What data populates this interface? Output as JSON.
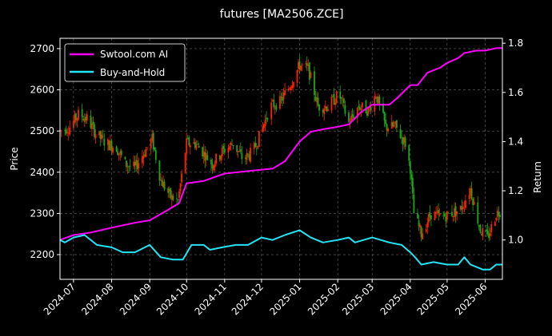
{
  "chart_data": {
    "type": "line",
    "title": "futures [MA2506.ZCE]",
    "xlabel": "",
    "ylabel": "Price",
    "y2label": "Return",
    "x_range": [
      "2024-06-20",
      "2025-06-15"
    ],
    "ylim": [
      2140,
      2725
    ],
    "y2lim": [
      0.84,
      1.82
    ],
    "yticks": [
      2200,
      2300,
      2400,
      2500,
      2600,
      2700
    ],
    "y2ticks": [
      1.0,
      1.2,
      1.4,
      1.6,
      1.8
    ],
    "y2tick_labels": [
      "1.0",
      "1.2",
      "1.4",
      "1.6",
      "1.8"
    ],
    "xticks": [
      "2024-07-01",
      "2024-08-01",
      "2024-09-01",
      "2024-10-01",
      "2024-11-01",
      "2024-12-01",
      "2025-01-01",
      "2025-02-01",
      "2025-03-01",
      "2025-04-01",
      "2025-05-01",
      "2025-06-01"
    ],
    "xtick_labels": [
      "2024-07",
      "2024-08",
      "2024-09",
      "2024-10",
      "2024-11",
      "2024-12",
      "2025-01",
      "2025-02",
      "2025-03",
      "2025-04",
      "2025-05",
      "2025-06"
    ],
    "grid": true,
    "legend_position": "top-left",
    "colors": {
      "background": "#000000",
      "up": "#ff2200",
      "down": "#1aa81a",
      "ai": "#ff00ff",
      "bh": "#22e5f5",
      "grid": "#6a6a6a",
      "axis": "#ffffff"
    },
    "price_anchors": [
      [
        "2024-06-20",
        2500
      ],
      [
        "2024-06-28",
        2510
      ],
      [
        "2024-07-05",
        2540
      ],
      [
        "2024-07-12",
        2530
      ],
      [
        "2024-07-20",
        2490
      ],
      [
        "2024-07-28",
        2470
      ],
      [
        "2024-08-05",
        2460
      ],
      [
        "2024-08-12",
        2420
      ],
      [
        "2024-08-20",
        2410
      ],
      [
        "2024-08-28",
        2450
      ],
      [
        "2024-09-03",
        2480
      ],
      [
        "2024-09-10",
        2380
      ],
      [
        "2024-09-18",
        2340
      ],
      [
        "2024-09-24",
        2330
      ],
      [
        "2024-10-01",
        2470
      ],
      [
        "2024-10-08",
        2470
      ],
      [
        "2024-10-14",
        2450
      ],
      [
        "2024-10-22",
        2420
      ],
      [
        "2024-10-30",
        2450
      ],
      [
        "2024-11-08",
        2470
      ],
      [
        "2024-11-16",
        2430
      ],
      [
        "2024-11-24",
        2450
      ],
      [
        "2024-12-01",
        2500
      ],
      [
        "2024-12-08",
        2560
      ],
      [
        "2024-12-16",
        2570
      ],
      [
        "2024-12-24",
        2610
      ],
      [
        "2025-01-01",
        2660
      ],
      [
        "2025-01-08",
        2650
      ],
      [
        "2025-01-16",
        2560
      ],
      [
        "2025-01-24",
        2560
      ],
      [
        "2025-02-02",
        2590
      ],
      [
        "2025-02-10",
        2520
      ],
      [
        "2025-02-18",
        2560
      ],
      [
        "2025-02-26",
        2550
      ],
      [
        "2025-03-04",
        2590
      ],
      [
        "2025-03-12",
        2510
      ],
      [
        "2025-03-20",
        2510
      ],
      [
        "2025-03-28",
        2470
      ],
      [
        "2025-04-01",
        2410
      ],
      [
        "2025-04-04",
        2300
      ],
      [
        "2025-04-10",
        2250
      ],
      [
        "2025-04-18",
        2300
      ],
      [
        "2025-04-26",
        2290
      ],
      [
        "2025-05-04",
        2300
      ],
      [
        "2025-05-12",
        2310
      ],
      [
        "2025-05-20",
        2360
      ],
      [
        "2025-05-28",
        2260
      ],
      [
        "2025-06-03",
        2240
      ],
      [
        "2025-06-10",
        2300
      ],
      [
        "2025-06-15",
        2310
      ]
    ],
    "series": [
      {
        "name": "Swtool.com AI",
        "axis": "right",
        "points": [
          [
            "2024-06-20",
            1.0
          ],
          [
            "2024-07-01",
            1.02
          ],
          [
            "2024-07-15",
            1.03
          ],
          [
            "2024-08-01",
            1.05
          ],
          [
            "2024-08-20",
            1.07
          ],
          [
            "2024-09-01",
            1.08
          ],
          [
            "2024-09-15",
            1.12
          ],
          [
            "2024-09-25",
            1.15
          ],
          [
            "2024-10-01",
            1.23
          ],
          [
            "2024-10-15",
            1.24
          ],
          [
            "2024-11-01",
            1.27
          ],
          [
            "2024-11-20",
            1.28
          ],
          [
            "2024-12-10",
            1.29
          ],
          [
            "2024-12-20",
            1.32
          ],
          [
            "2025-01-01",
            1.4
          ],
          [
            "2025-01-10",
            1.44
          ],
          [
            "2025-01-20",
            1.45
          ],
          [
            "2025-02-01",
            1.46
          ],
          [
            "2025-02-10",
            1.47
          ],
          [
            "2025-02-20",
            1.52
          ],
          [
            "2025-03-01",
            1.55
          ],
          [
            "2025-03-15",
            1.55
          ],
          [
            "2025-03-22",
            1.58
          ],
          [
            "2025-04-01",
            1.63
          ],
          [
            "2025-04-07",
            1.63
          ],
          [
            "2025-04-15",
            1.68
          ],
          [
            "2025-04-25",
            1.7
          ],
          [
            "2025-05-01",
            1.72
          ],
          [
            "2025-05-10",
            1.74
          ],
          [
            "2025-05-15",
            1.76
          ],
          [
            "2025-05-25",
            1.77
          ],
          [
            "2025-06-01",
            1.77
          ],
          [
            "2025-06-10",
            1.78
          ],
          [
            "2025-06-15",
            1.78
          ]
        ]
      },
      {
        "name": "Buy-and-Hold",
        "axis": "right",
        "points": [
          [
            "2024-06-20",
            1.0
          ],
          [
            "2024-06-24",
            0.99
          ],
          [
            "2024-07-01",
            1.01
          ],
          [
            "2024-07-10",
            1.02
          ],
          [
            "2024-07-20",
            0.98
          ],
          [
            "2024-08-01",
            0.97
          ],
          [
            "2024-08-10",
            0.95
          ],
          [
            "2024-08-20",
            0.95
          ],
          [
            "2024-09-01",
            0.98
          ],
          [
            "2024-09-10",
            0.93
          ],
          [
            "2024-09-20",
            0.92
          ],
          [
            "2024-09-28",
            0.92
          ],
          [
            "2024-10-05",
            0.98
          ],
          [
            "2024-10-15",
            0.98
          ],
          [
            "2024-10-20",
            0.96
          ],
          [
            "2024-10-30",
            0.97
          ],
          [
            "2024-11-10",
            0.98
          ],
          [
            "2024-11-20",
            0.98
          ],
          [
            "2024-12-01",
            1.01
          ],
          [
            "2024-12-10",
            1.0
          ],
          [
            "2024-12-20",
            1.02
          ],
          [
            "2025-01-01",
            1.04
          ],
          [
            "2025-01-10",
            1.01
          ],
          [
            "2025-01-20",
            0.99
          ],
          [
            "2025-02-01",
            1.0
          ],
          [
            "2025-02-10",
            1.01
          ],
          [
            "2025-02-15",
            0.99
          ],
          [
            "2025-03-01",
            1.01
          ],
          [
            "2025-03-15",
            0.99
          ],
          [
            "2025-03-25",
            0.98
          ],
          [
            "2025-04-01",
            0.95
          ],
          [
            "2025-04-05",
            0.93
          ],
          [
            "2025-04-10",
            0.9
          ],
          [
            "2025-04-20",
            0.91
          ],
          [
            "2025-05-01",
            0.9
          ],
          [
            "2025-05-10",
            0.9
          ],
          [
            "2025-05-15",
            0.93
          ],
          [
            "2025-05-20",
            0.9
          ],
          [
            "2025-05-30",
            0.88
          ],
          [
            "2025-06-05",
            0.88
          ],
          [
            "2025-06-10",
            0.9
          ],
          [
            "2025-06-15",
            0.9
          ]
        ]
      }
    ]
  }
}
